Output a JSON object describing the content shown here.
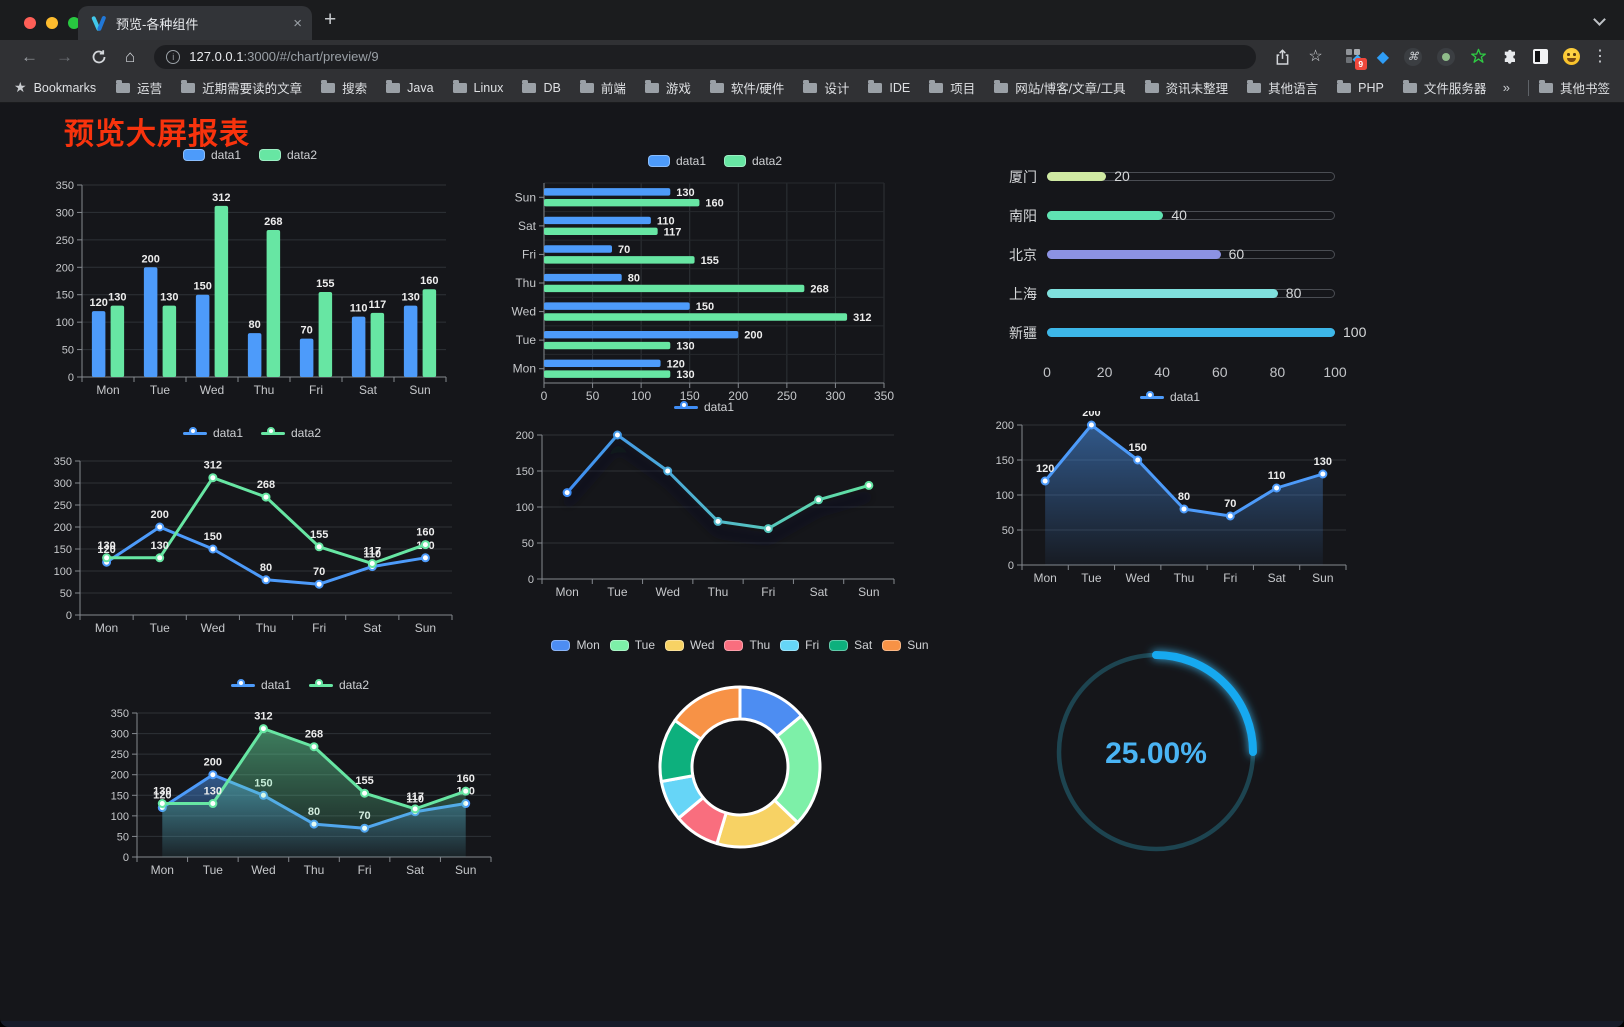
{
  "browser": {
    "tab_title": "预览-各种组件",
    "url_host": "127.0.0.1",
    "url_rest": ":3000/#/chart/preview/9",
    "bookmarks_label": "Bookmarks",
    "bookmark_folders": [
      "运营",
      "近期需要读的文章",
      "搜索",
      "Java",
      "Linux",
      "DB",
      "前端",
      "游戏",
      "软件/硬件",
      "设计",
      "IDE",
      "项目",
      "网站/博客/文章/工具",
      "资讯未整理",
      "其他语言",
      "PHP",
      "文件服务器"
    ],
    "bookmarks_overflow": "»",
    "other_bookmarks_label": "其他书签",
    "extension_badge": "9",
    "icons": {
      "back": "←",
      "forward": "→",
      "home": "⌂",
      "plus": "+",
      "close": "×",
      "menu": "⋮",
      "bookmark_star_filled": "★",
      "star_outline": "☆",
      "command": "⌘",
      "gem": "◆"
    }
  },
  "page": {
    "title": "预览大屏报表",
    "title_color": "#f8330d",
    "background": "#15161a"
  },
  "chart_data": [
    {
      "el": "c1",
      "type": "bar",
      "categories": [
        "Mon",
        "Tue",
        "Wed",
        "Thu",
        "Fri",
        "Sat",
        "Sun"
      ],
      "series": [
        {
          "name": "data1",
          "color": "#4d9bfa",
          "values": [
            120,
            200,
            150,
            80,
            70,
            110,
            130
          ]
        },
        {
          "name": "data2",
          "color": "#67e6a3",
          "values": [
            130,
            130,
            312,
            268,
            155,
            117,
            160
          ]
        }
      ],
      "ylim": [
        0,
        350
      ],
      "ytick": 50,
      "legend_position": "top",
      "grid": true
    },
    {
      "el": "c2",
      "type": "hbar",
      "categories": [
        "Mon",
        "Tue",
        "Wed",
        "Thu",
        "Fri",
        "Sat",
        "Sun"
      ],
      "series": [
        {
          "name": "data1",
          "color": "#4d9bfa",
          "values": [
            120,
            200,
            150,
            80,
            70,
            110,
            130
          ]
        },
        {
          "name": "data2",
          "color": "#67e6a3",
          "values": [
            130,
            130,
            312,
            268,
            155,
            117,
            160
          ]
        }
      ],
      "xlim": [
        0,
        350
      ],
      "xtick": 50,
      "legend_position": "top",
      "grid": true
    },
    {
      "el": "c3",
      "type": "progress",
      "max": 100,
      "axis_ticks": [
        0,
        20,
        40,
        60,
        80,
        100
      ],
      "rows": [
        {
          "label": "厦门",
          "value": 20,
          "color": "#cfe9a2"
        },
        {
          "label": "南阳",
          "value": 40,
          "color": "#5fe3b2"
        },
        {
          "label": "北京",
          "value": 60,
          "color": "#8c92e3"
        },
        {
          "label": "上海",
          "value": 80,
          "color": "#7fe0dd"
        },
        {
          "label": "新疆",
          "value": 100,
          "color": "#3db7e8"
        }
      ]
    },
    {
      "el": "c4",
      "type": "line",
      "categories": [
        "Mon",
        "Tue",
        "Wed",
        "Thu",
        "Fri",
        "Sat",
        "Sun"
      ],
      "series": [
        {
          "name": "data1",
          "color": "#4d9bfa",
          "values": [
            120,
            200,
            150,
            80,
            70,
            110,
            130
          ]
        },
        {
          "name": "data2",
          "color": "#67e6a3",
          "values": [
            130,
            130,
            312,
            268,
            155,
            117,
            160
          ]
        }
      ],
      "ylim": [
        0,
        350
      ],
      "ytick": 50,
      "labels": true,
      "legend_position": "top",
      "grid": true
    },
    {
      "el": "c5",
      "type": "line",
      "categories": [
        "Mon",
        "Tue",
        "Wed",
        "Thu",
        "Fri",
        "Sat",
        "Sun"
      ],
      "series": [
        {
          "name": "data1",
          "gradient": [
            "#3f8df5",
            "#62e3a0"
          ],
          "values": [
            120,
            200,
            150,
            80,
            70,
            110,
            130
          ]
        }
      ],
      "ylim": [
        0,
        200
      ],
      "ytick": 50,
      "labels": false,
      "shadow": true,
      "legend_position": "top",
      "grid": true
    },
    {
      "el": "c6",
      "type": "line",
      "categories": [
        "Mon",
        "Tue",
        "Wed",
        "Thu",
        "Fri",
        "Sat",
        "Sun"
      ],
      "series": [
        {
          "name": "data1",
          "color": "#4d9bfa",
          "values": [
            120,
            200,
            150,
            80,
            70,
            110,
            130
          ],
          "area": true
        }
      ],
      "ylim": [
        0,
        200
      ],
      "ytick": 50,
      "labels": true,
      "legend_position": "top",
      "grid": true
    },
    {
      "el": "c7",
      "type": "line",
      "categories": [
        "Mon",
        "Tue",
        "Wed",
        "Thu",
        "Fri",
        "Sat",
        "Sun"
      ],
      "series": [
        {
          "name": "data1",
          "color": "#4d9bfa",
          "values": [
            120,
            200,
            150,
            80,
            70,
            110,
            130
          ],
          "area": true
        },
        {
          "name": "data2",
          "color": "#67e6a3",
          "values": [
            130,
            130,
            312,
            268,
            155,
            117,
            160
          ],
          "area": true
        }
      ],
      "ylim": [
        0,
        350
      ],
      "ytick": 50,
      "labels": true,
      "legend_position": "top",
      "grid": true
    },
    {
      "el": "c8",
      "type": "pie",
      "donut": true,
      "categories": [
        "Mon",
        "Tue",
        "Wed",
        "Thu",
        "Fri",
        "Sat",
        "Sun"
      ],
      "values": [
        120,
        200,
        150,
        80,
        70,
        110,
        130
      ],
      "colors": [
        "#4d8df2",
        "#7df0a8",
        "#f7d264",
        "#f96e7e",
        "#66d5f7",
        "#0db07d",
        "#f79246"
      ],
      "legend_position": "top"
    },
    {
      "el": "c9",
      "type": "gauge",
      "percent": 25,
      "value_label": "25.00%",
      "color": "#18a9f0",
      "track_color": "#1d4450",
      "text_color": "#4ab4f4"
    }
  ]
}
